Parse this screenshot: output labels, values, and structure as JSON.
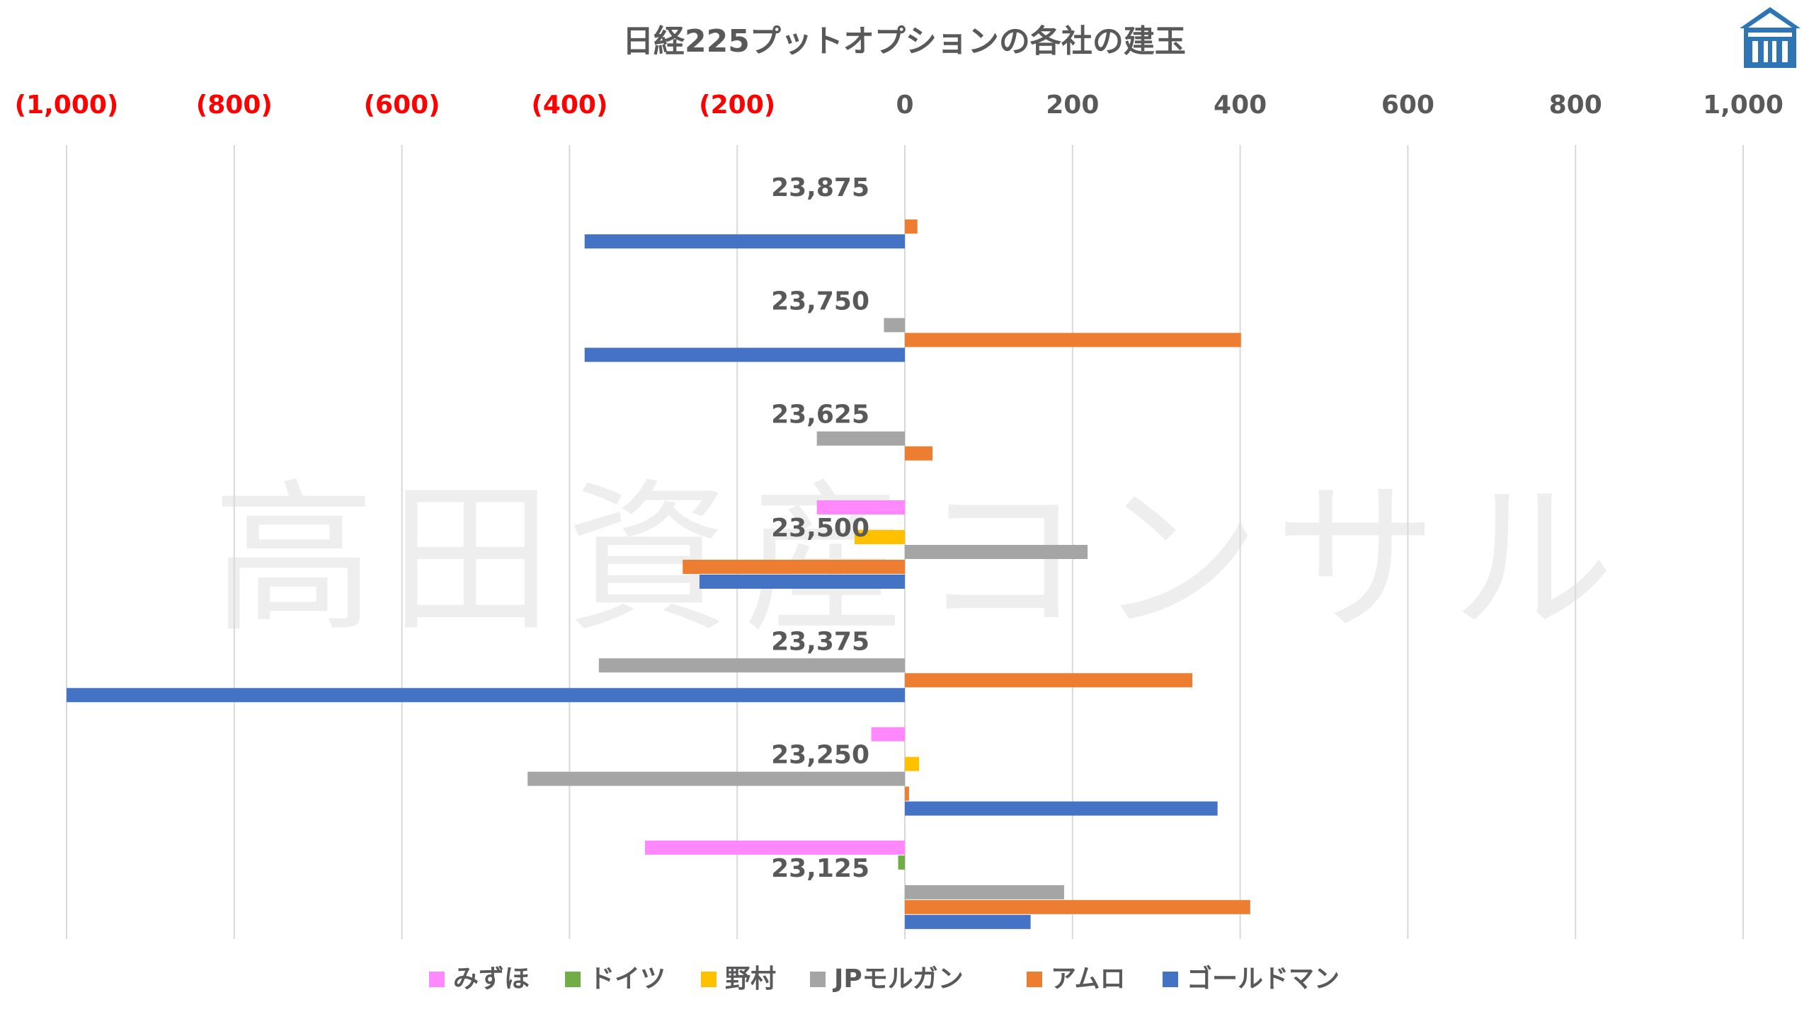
{
  "chart_data": {
    "type": "bar",
    "orientation": "horizontal",
    "title": "日経225プットオプションの各社の建玉",
    "watermark": "高田資産コンサル",
    "categories": [
      "23,125",
      "23,250",
      "23,375",
      "23,500",
      "23,625",
      "23,750",
      "23,875"
    ],
    "xlim": [
      -1000,
      1000
    ],
    "x_ticks": [
      {
        "value": -1000,
        "label": "(1,000)"
      },
      {
        "value": -800,
        "label": "(800)"
      },
      {
        "value": -600,
        "label": "(600)"
      },
      {
        "value": -400,
        "label": "(400)"
      },
      {
        "value": -200,
        "label": "(200)"
      },
      {
        "value": 0,
        "label": "0"
      },
      {
        "value": 200,
        "label": "200"
      },
      {
        "value": 400,
        "label": "400"
      },
      {
        "value": 600,
        "label": "600"
      },
      {
        "value": 800,
        "label": "800"
      },
      {
        "value": 1000,
        "label": "1,000"
      }
    ],
    "negative_tick_color": "#ff0000",
    "positive_tick_color": "#595959",
    "grid": true,
    "legend_position": "bottom",
    "series": [
      {
        "name": "みずほ",
        "color": "#ff88ff",
        "values": [
          -310,
          -40,
          0,
          -105,
          0,
          0,
          0
        ]
      },
      {
        "name": "ドイツ",
        "color": "#70ad47",
        "values": [
          -8,
          0,
          0,
          0,
          0,
          0,
          0
        ]
      },
      {
        "name": "野村",
        "color": "#ffc000",
        "values": [
          0,
          17,
          0,
          -60,
          0,
          0,
          0
        ]
      },
      {
        "name": "JPモルガン",
        "color": "#a5a5a5",
        "values": [
          190,
          -450,
          -365,
          218,
          -105,
          -25,
          0
        ]
      },
      {
        "name": "アムロ",
        "color": "#ed7d31",
        "values": [
          412,
          5,
          343,
          -265,
          33,
          401,
          15
        ]
      },
      {
        "name": "ゴールドマン",
        "color": "#4472c4",
        "values": [
          150,
          373,
          -1000,
          -245,
          0,
          -382,
          -382
        ]
      }
    ]
  },
  "logo": {
    "name": "logo-house-icon",
    "color": "#2e75b6"
  }
}
